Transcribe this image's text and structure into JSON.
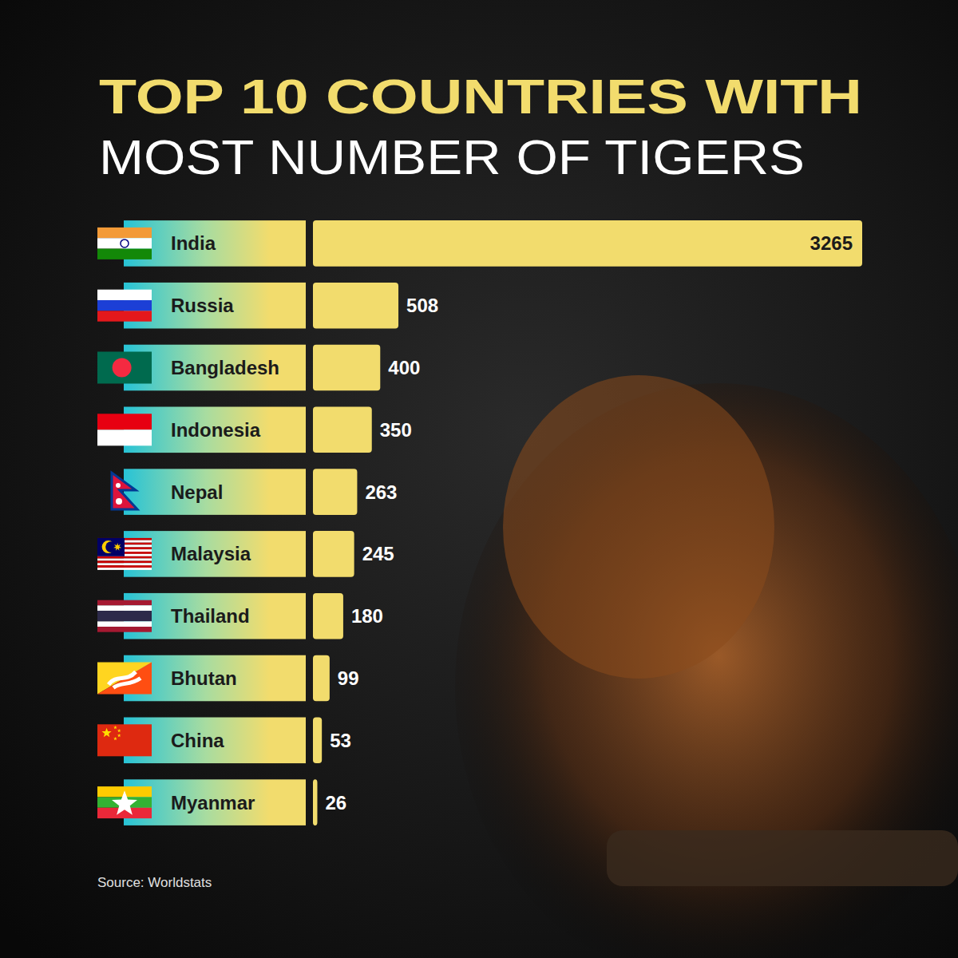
{
  "chart_data": {
    "type": "bar",
    "orientation": "horizontal",
    "title": "TOP 10 COUNTRIES WITH",
    "subtitle": "MOST NUMBER OF TIGERS",
    "categories": [
      "India",
      "Russia",
      "Bangladesh",
      "Indonesia",
      "Nepal",
      "Malaysia",
      "Thailand",
      "Bhutan",
      "China",
      "Myanmar"
    ],
    "values": [
      3265,
      508,
      400,
      350,
      263,
      245,
      180,
      99,
      53,
      26
    ],
    "color": "#f2dc6d",
    "xlim": [
      0,
      3265
    ],
    "data_labels": true,
    "tick_labels": false,
    "grid": false,
    "annotations": [
      "Source: Worldstats"
    ]
  }
}
